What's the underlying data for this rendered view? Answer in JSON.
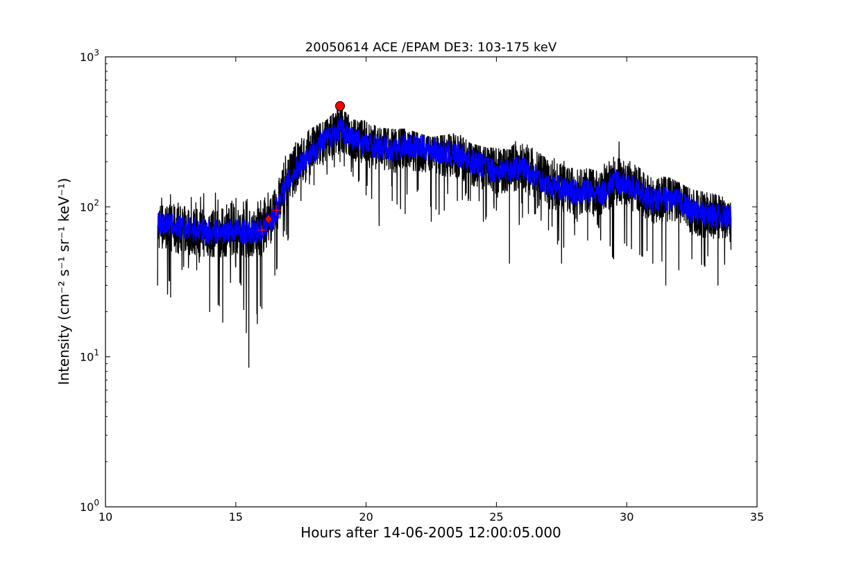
{
  "chart_data": {
    "type": "line",
    "title": "20050614 ACE /EPAM DE3: 103-175 keV",
    "xlabel": "Hours after 14-06-2005 12:00:05.000",
    "ylabel": "Intensity (cm⁻² s⁻¹ sr⁻¹ keV⁻¹)",
    "xlim": [
      10,
      35
    ],
    "ylim": [
      1,
      1000
    ],
    "yscale": "log",
    "grid": false,
    "x_ticks": [
      {
        "value": 10,
        "label": "10"
      },
      {
        "value": 15,
        "label": "15"
      },
      {
        "value": 20,
        "label": "20"
      },
      {
        "value": 25,
        "label": "25"
      },
      {
        "value": 30,
        "label": "30"
      },
      {
        "value": 35,
        "label": "35"
      }
    ],
    "y_ticks": [
      {
        "value": 1,
        "base": "10",
        "exp": "0"
      },
      {
        "value": 10,
        "base": "10",
        "exp": "1"
      },
      {
        "value": 100,
        "base": "10",
        "exp": "2"
      },
      {
        "value": 1000,
        "base": "10",
        "exp": "3"
      }
    ],
    "series": [
      {
        "color": "#000000",
        "style": "raw",
        "x": [
          12.0,
          12.5,
          13.0,
          13.5,
          14.0,
          14.5,
          15.0,
          15.5,
          16.0,
          16.5,
          17.0,
          17.5,
          18.0,
          18.5,
          19.0,
          19.5,
          20.0,
          20.5,
          21.0,
          21.5,
          22.0,
          22.5,
          23.0,
          23.5,
          24.0,
          24.5,
          25.0,
          25.5,
          26.0,
          26.5,
          27.0,
          27.5,
          28.0,
          28.5,
          29.0,
          29.5,
          30.0,
          30.5,
          31.0,
          31.5,
          32.0,
          32.5,
          33.0,
          33.5,
          34.0
        ],
        "y": [
          75,
          72,
          70,
          68,
          66,
          67,
          70,
          66,
          68,
          90,
          150,
          200,
          245,
          290,
          340,
          290,
          270,
          250,
          240,
          260,
          250,
          245,
          230,
          225,
          205,
          190,
          175,
          180,
          185,
          165,
          140,
          135,
          125,
          130,
          120,
          150,
          145,
          125,
          110,
          115,
          110,
          95,
          90,
          88,
          85
        ],
        "y_min": [
          30,
          25,
          40,
          38,
          20,
          17,
          40,
          8.5,
          21,
          35,
          60,
          110,
          140,
          165,
          200,
          160,
          120,
          75,
          110,
          90,
          130,
          80,
          95,
          110,
          110,
          80,
          95,
          42,
          85,
          90,
          70,
          42,
          65,
          60,
          60,
          45,
          55,
          48,
          42,
          30,
          38,
          45,
          40,
          30,
          52
        ],
        "y_max": [
          130,
          125,
          120,
          125,
          150,
          110,
          115,
          115,
          120,
          150,
          245,
          300,
          340,
          380,
          460,
          380,
          375,
          335,
          330,
          330,
          310,
          290,
          300,
          310,
          265,
          250,
          245,
          240,
          340,
          240,
          210,
          210,
          175,
          180,
          170,
          310,
          220,
          200,
          150,
          160,
          145,
          130,
          125,
          120,
          110
        ]
      },
      {
        "color": "#0000ff",
        "style": "smoothed",
        "x": [
          12.0,
          12.5,
          13.0,
          13.5,
          14.0,
          14.5,
          15.0,
          15.5,
          16.0,
          16.5,
          17.0,
          17.5,
          18.0,
          18.5,
          19.0,
          19.5,
          20.0,
          20.5,
          21.0,
          21.5,
          22.0,
          22.5,
          23.0,
          23.5,
          24.0,
          24.5,
          25.0,
          25.5,
          26.0,
          26.5,
          27.0,
          27.5,
          28.0,
          28.5,
          29.0,
          29.5,
          30.0,
          30.5,
          31.0,
          31.5,
          32.0,
          32.5,
          33.0,
          33.5,
          34.0
        ],
        "y": [
          78,
          75,
          72,
          70,
          68,
          68,
          70,
          67,
          70,
          88,
          145,
          195,
          240,
          285,
          330,
          285,
          265,
          248,
          238,
          258,
          248,
          242,
          228,
          222,
          203,
          188,
          173,
          178,
          183,
          163,
          138,
          133,
          124,
          128,
          119,
          148,
          143,
          124,
          109,
          114,
          109,
          94,
          89,
          87,
          84
        ]
      }
    ],
    "markers": [
      {
        "shape": "circle",
        "color": "#ff0000",
        "x": 19.0,
        "y": 470
      },
      {
        "shape": "diamond",
        "color": "#ff0000",
        "x": 16.25,
        "y": 83
      },
      {
        "shape": "plus",
        "color": "#ff0000",
        "x": 16.0,
        "y": 70
      },
      {
        "shape": "plus",
        "color": "#ff0000",
        "x": 16.55,
        "y": 95
      }
    ]
  }
}
